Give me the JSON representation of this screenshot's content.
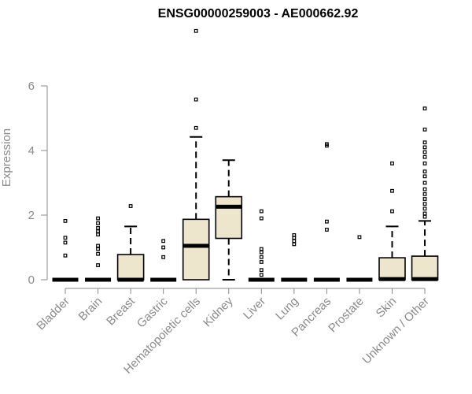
{
  "chart_data": {
    "type": "boxplot",
    "title": "ENSG00000259003 - AE000662.92",
    "ylabel": "Expression",
    "xlabel": "",
    "ylim": [
      0,
      7.5
    ],
    "yticks": [
      0,
      2,
      4,
      6
    ],
    "categories": [
      "Bladder",
      "Brain",
      "Breast",
      "Gastric",
      "Hematopoietic cells",
      "Kidney",
      "Liver",
      "Lung",
      "Pancreas",
      "Prostate",
      "Skin",
      "Unknown / Other"
    ],
    "boxes": [
      {
        "q1": 0,
        "median": 0,
        "q3": 0,
        "whisker_low": 0,
        "whisker_high": 0,
        "outliers": [
          0.75,
          1.15,
          1.3,
          1.82
        ]
      },
      {
        "q1": 0,
        "median": 0,
        "q3": 0,
        "whisker_low": 0,
        "whisker_high": 0,
        "outliers": [
          0.45,
          0.8,
          0.95,
          1.05,
          1.4,
          1.5,
          1.6,
          1.75,
          1.9
        ]
      },
      {
        "q1": 0,
        "median": 0,
        "q3": 0.78,
        "whisker_low": 0,
        "whisker_high": 1.65,
        "outliers": [
          2.28
        ]
      },
      {
        "q1": 0,
        "median": 0,
        "q3": 0,
        "whisker_low": 0,
        "whisker_high": 0,
        "outliers": [
          0.7,
          1.0,
          1.2
        ]
      },
      {
        "q1": 0,
        "median": 1.05,
        "q3": 1.87,
        "whisker_low": 0,
        "whisker_high": 4.42,
        "outliers": [
          4.7,
          5.58,
          7.7
        ]
      },
      {
        "q1": 1.28,
        "median": 2.26,
        "q3": 2.57,
        "whisker_low": 0,
        "whisker_high": 3.7,
        "outliers": []
      },
      {
        "q1": 0,
        "median": 0,
        "q3": 0,
        "whisker_low": 0,
        "whisker_high": 0,
        "outliers": [
          0.15,
          0.3,
          0.55,
          0.7,
          0.85,
          0.95,
          1.9,
          2.12
        ]
      },
      {
        "q1": 0,
        "median": 0,
        "q3": 0,
        "whisker_low": 0,
        "whisker_high": 0,
        "outliers": [
          1.1,
          1.2,
          1.3,
          1.38
        ]
      },
      {
        "q1": 0,
        "median": 0,
        "q3": 0,
        "whisker_low": 0,
        "whisker_high": 0,
        "outliers": [
          1.55,
          1.8,
          4.15,
          4.2
        ]
      },
      {
        "q1": 0,
        "median": 0,
        "q3": 0,
        "whisker_low": 0,
        "whisker_high": 0,
        "outliers": [
          1.32
        ]
      },
      {
        "q1": 0,
        "median": 0.02,
        "q3": 0.68,
        "whisker_low": 0,
        "whisker_high": 1.65,
        "outliers": [
          2.12,
          2.75,
          3.6
        ]
      },
      {
        "q1": 0,
        "median": 0.02,
        "q3": 0.73,
        "whisker_low": 0,
        "whisker_high": 1.82,
        "outliers": [
          1.95,
          2.05,
          2.2,
          2.35,
          2.5,
          2.65,
          2.8,
          3.0,
          3.2,
          3.35,
          3.6,
          3.8,
          3.95,
          4.1,
          4.25,
          4.65,
          5.3
        ]
      }
    ],
    "box_fill": "#ede6cc",
    "grid": false,
    "legend": "none"
  }
}
